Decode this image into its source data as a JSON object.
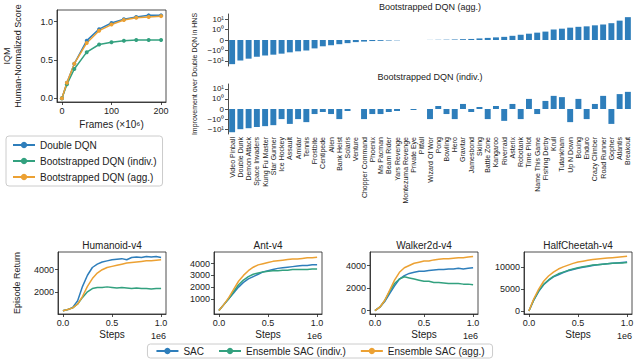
{
  "chart_data": [
    {
      "type": "line",
      "xlabel": "Frames (×10⁶)",
      "ylabel": "IQM\nHuman-Normalized Score",
      "x": [
        0,
        10,
        25,
        50,
        75,
        100,
        125,
        150,
        175,
        200
      ],
      "xlim": [
        -10,
        210
      ],
      "xticks": [
        0,
        100,
        200
      ],
      "ylim": [
        -0.05,
        1.15
      ],
      "yticks": [
        {
          "value": 0,
          "label": "0.0"
        },
        0.5,
        {
          "value": 1,
          "label": "1.0"
        }
      ],
      "grid": false,
      "legend": "lower left",
      "marker": "o",
      "series": [
        {
          "name": "Double DQN",
          "color": "#2e7ebb",
          "values": [
            0,
            0.2,
            0.45,
            0.75,
            0.9,
            0.98,
            1.03,
            1.06,
            1.08,
            1.08
          ]
        },
        {
          "name": "Bootstrapped DQN (indiv.)",
          "color": "#33a17f",
          "values": [
            0,
            0.18,
            0.38,
            0.6,
            0.7,
            0.73,
            0.75,
            0.76,
            0.76,
            0.76
          ]
        },
        {
          "name": "Bootstrapped DQN (agg.)",
          "color": "#eca133",
          "values": [
            0,
            0.2,
            0.45,
            0.72,
            0.88,
            0.96,
            1.02,
            1.05,
            1.06,
            1.07
          ]
        }
      ]
    },
    {
      "type": "bar",
      "title": "Bootstrapped DQN (agg.)",
      "ylabel": "Improvement over Double DQN in HNS",
      "categories": [
        "Video Pinball",
        "Double Dunk",
        "Demon Attack",
        "Space Invaders",
        "Kung Fu Master",
        "Star Gunner",
        "Ice Hockey",
        "Assault",
        "Amidar",
        "Tennis",
        "Frostbite",
        "Centipede",
        "Alien",
        "Bank Heist",
        "Solaris",
        "Venture",
        "Chopper Command",
        "Phoenix",
        "Ms Pacman",
        "Beam Rider",
        "Yars Revenge",
        "Montezuma Revenge",
        "Private Eye",
        "Pitfall",
        "Wizard Of Wor",
        "Pong",
        "Bowling",
        "Hero",
        "Gravitar",
        "Jamesbond",
        "Skiing",
        "Battle Zone",
        "Kangaroo",
        "Riverraid",
        "Asterix",
        "Robotank",
        "Time Pilot",
        "Name This Game",
        "Fishing Derby",
        "Krull",
        "Tutankham",
        "Up N Down",
        "Boxing",
        "Enduro",
        "Crazy Climber",
        "Road Runner",
        "Gopher",
        "Atlantis",
        "Breakout"
      ],
      "values": [
        -20,
        -9,
        -6,
        -4,
        -3,
        -2.5,
        -2,
        -1.5,
        -1.2,
        -1,
        -0.8,
        -0.6,
        -0.5,
        -0.4,
        -0.3,
        -0.2,
        -0.15,
        -0.1,
        -0.08,
        -0.05,
        -0.03,
        0,
        0,
        0,
        0.01,
        0.02,
        0.03,
        0.05,
        0.08,
        0.1,
        0.15,
        0.2,
        0.25,
        0.3,
        0.4,
        0.5,
        0.6,
        0.7,
        0.8,
        1,
        1.2,
        1.5,
        1.8,
        2,
        2.5,
        3,
        4,
        7,
        15
      ],
      "color": "#2e7ebb",
      "log": "y",
      "ylim": [
        -30,
        30
      ],
      "yticks": [
        {
          "value": -10,
          "label": "−10¹"
        },
        {
          "value": -1,
          "label": "−10⁰"
        },
        0,
        {
          "value": 1,
          "label": "10⁰"
        },
        {
          "value": 10,
          "label": "10¹"
        }
      ],
      "grid": false,
      "tick_labels": "y"
    },
    {
      "type": "bar",
      "title": "Bootstrapped DQN (indiv.)",
      "categories": [
        "Video Pinball",
        "Double Dunk",
        "Demon Attack",
        "Space Invaders",
        "Kung Fu Master",
        "Star Gunner",
        "Ice Hockey",
        "Assault",
        "Amidar",
        "Tennis",
        "Frostbite",
        "Centipede",
        "Alien",
        "Bank Heist",
        "Solaris",
        "Venture",
        "Chopper Command",
        "Phoenix",
        "Ms Pacman",
        "Beam Rider",
        "Yars Revenge",
        "Montezuma Revenge",
        "Private Eye",
        "Pitfall",
        "Wizard Of Wor",
        "Pong",
        "Bowling",
        "Hero",
        "Gravitar",
        "Jamesbond",
        "Skiing",
        "Battle Zone",
        "Kangaroo",
        "Riverraid",
        "Asterix",
        "Robotank",
        "Time Pilot",
        "Name This Game",
        "Fishing Derby",
        "Krull",
        "Tutankham",
        "Up N Down",
        "Boxing",
        "Enduro",
        "Crazy Climber",
        "Road Runner",
        "Gopher",
        "Atlantis",
        "Breakout"
      ],
      "values": [
        -20,
        -10,
        -8,
        -6,
        -5,
        -4,
        -1,
        -3,
        -1,
        -2,
        -0.5,
        -0.3,
        -0.5,
        -1,
        -0.2,
        0,
        -1,
        -0.5,
        -0.5,
        -0.3,
        -0.2,
        0,
        -0.1,
        0,
        -1,
        0.3,
        -0.5,
        -1,
        0.5,
        -0.3,
        0.2,
        -1,
        0.3,
        -1.5,
        0.5,
        -1,
        1,
        -0.5,
        0.8,
        2,
        1.5,
        -2,
        1,
        -1,
        0.5,
        2,
        -3,
        3,
        5
      ],
      "color": "#2e7ebb",
      "log": "y",
      "ylim": [
        -30,
        30
      ],
      "yticks": [
        {
          "value": -10,
          "label": "−10¹"
        },
        {
          "value": -1,
          "label": "−10⁰"
        },
        0,
        {
          "value": 1,
          "label": "10⁰"
        },
        {
          "value": 10,
          "label": "10¹"
        }
      ],
      "grid": false,
      "tick_labels": true
    },
    {
      "type": "line",
      "title": "Humanoid-v4",
      "xlabel": "Steps",
      "ylabel": "Episode Return",
      "annotations": [
        "1e6"
      ],
      "x": [
        0,
        0.05,
        0.1,
        0.15,
        0.2,
        0.25,
        0.3,
        0.35,
        0.4,
        0.45,
        0.5,
        0.55,
        0.6,
        0.65,
        0.7,
        0.75,
        0.8,
        0.85,
        0.9,
        0.95,
        1
      ],
      "xlim": [
        -0.05,
        1.05
      ],
      "xticks": [
        {
          "value": 0,
          "label": "0.0"
        },
        0.5,
        {
          "value": 1,
          "label": "1.0"
        }
      ],
      "ylim": [
        0,
        5600
      ],
      "yticks": [
        2000,
        4000
      ],
      "grid": false,
      "legend": "lower center",
      "marker": "none",
      "series": [
        {
          "name": "SAC",
          "color": "#2e7ebb",
          "values": [
            300,
            400,
            600,
            1200,
            2500,
            3500,
            4200,
            4500,
            4700,
            4800,
            4900,
            4950,
            5000,
            4900,
            5100,
            5150,
            5100,
            5200,
            5150,
            5200,
            5100
          ]
        },
        {
          "name": "Ensemble SAC (indiv.)",
          "color": "#33a17f",
          "values": [
            300,
            400,
            550,
            900,
            1500,
            2000,
            2300,
            2400,
            2400,
            2450,
            2400,
            2350,
            2400,
            2350,
            2300,
            2350,
            2300,
            2300,
            2250,
            2300,
            2300
          ]
        },
        {
          "name": "Ensemble SAC (agg.)",
          "color": "#eca133",
          "values": [
            300,
            400,
            550,
            900,
            1600,
            2500,
            3200,
            3700,
            4000,
            4200,
            4300,
            4400,
            4500,
            4600,
            4650,
            4700,
            4750,
            4800,
            4800,
            4850,
            4900
          ]
        }
      ]
    },
    {
      "type": "line",
      "title": "Ant-v4",
      "xlabel": "Steps",
      "annotations": [
        "1e6"
      ],
      "x": [
        0,
        0.05,
        0.1,
        0.15,
        0.2,
        0.25,
        0.3,
        0.35,
        0.4,
        0.45,
        0.5,
        0.55,
        0.6,
        0.65,
        0.7,
        0.75,
        0.8,
        0.85,
        0.9,
        0.95,
        1
      ],
      "xlim": [
        -0.05,
        1.05
      ],
      "xticks": [
        {
          "value": 0,
          "label": "0.0"
        },
        0.5,
        {
          "value": 1,
          "label": "1.0"
        }
      ],
      "ylim": [
        -300,
        5000
      ],
      "yticks": [
        1000,
        2000,
        3000,
        4000
      ],
      "grid": false,
      "marker": "none",
      "series": [
        {
          "name": "SAC",
          "color": "#2e7ebb",
          "values": [
            0,
            500,
            1000,
            1500,
            2000,
            2400,
            2700,
            2900,
            3100,
            3300,
            3400,
            3500,
            3600,
            3650,
            3700,
            3750,
            3800,
            3850,
            3850,
            3900,
            3900
          ]
        },
        {
          "name": "Ensemble SAC (indiv.)",
          "color": "#33a17f",
          "values": [
            0,
            500,
            1000,
            1600,
            2200,
            2600,
            2900,
            3100,
            3200,
            3300,
            3350,
            3400,
            3400,
            3450,
            3450,
            3500,
            3500,
            3500,
            3500,
            3550,
            3550
          ]
        },
        {
          "name": "Ensemble SAC (agg.)",
          "color": "#eca133",
          "values": [
            0,
            500,
            1100,
            1800,
            2500,
            3000,
            3400,
            3700,
            3900,
            4000,
            4100,
            4200,
            4250,
            4300,
            4350,
            4400,
            4400,
            4450,
            4500,
            4500,
            4550
          ]
        }
      ]
    },
    {
      "type": "line",
      "title": "Walker2d-v4",
      "xlabel": "Steps",
      "annotations": [
        "1e6"
      ],
      "x": [
        0,
        0.05,
        0.1,
        0.15,
        0.2,
        0.25,
        0.3,
        0.35,
        0.4,
        0.45,
        0.5,
        0.55,
        0.6,
        0.65,
        0.7,
        0.75,
        0.8,
        0.85,
        0.9,
        0.95,
        1
      ],
      "xlim": [
        -0.05,
        1.05
      ],
      "xticks": [
        {
          "value": 0,
          "label": "0.0"
        },
        0.5,
        {
          "value": 1,
          "label": "1.0"
        }
      ],
      "ylim": [
        -300,
        5200
      ],
      "yticks": [
        0,
        2000,
        4000
      ],
      "grid": false,
      "marker": "none",
      "series": [
        {
          "name": "SAC",
          "color": "#2e7ebb",
          "values": [
            0,
            300,
            800,
            1500,
            2200,
            2800,
            3100,
            3300,
            3400,
            3500,
            3500,
            3550,
            3600,
            3650,
            3650,
            3700,
            3700,
            3750,
            3700,
            3750,
            3800
          ]
        },
        {
          "name": "Ensemble SAC (indiv.)",
          "color": "#33a17f",
          "values": [
            0,
            300,
            900,
            1700,
            2400,
            2800,
            3000,
            2900,
            2800,
            2700,
            2600,
            2600,
            2500,
            2500,
            2450,
            2400,
            2400,
            2400,
            2350,
            2350,
            2300
          ]
        },
        {
          "name": "Ensemble SAC (agg.)",
          "color": "#eca133",
          "values": [
            0,
            300,
            900,
            1800,
            2700,
            3400,
            3800,
            4000,
            4200,
            4300,
            4400,
            4400,
            4500,
            4550,
            4600,
            4600,
            4650,
            4700,
            4700,
            4750,
            4800
          ]
        }
      ]
    },
    {
      "type": "line",
      "title": "HalfCheetah-v4",
      "xlabel": "Steps",
      "annotations": [
        "1e6"
      ],
      "x": [
        0,
        0.05,
        0.1,
        0.15,
        0.2,
        0.25,
        0.3,
        0.35,
        0.4,
        0.45,
        0.5,
        0.55,
        0.6,
        0.65,
        0.7,
        0.75,
        0.8,
        0.85,
        0.9,
        0.95,
        1
      ],
      "xlim": [
        -0.05,
        1.05
      ],
      "xticks": [
        {
          "value": 0,
          "label": "0.0"
        },
        0.5,
        {
          "value": 1,
          "label": "1.0"
        }
      ],
      "ylim": [
        -700,
        13500
      ],
      "yticks": [
        0,
        5000,
        10000
      ],
      "grid": false,
      "marker": "none",
      "series": [
        {
          "name": "SAC",
          "color": "#2e7ebb",
          "values": [
            0,
            2500,
            4500,
            6000,
            7000,
            7800,
            8300,
            8800,
            9200,
            9500,
            9800,
            10000,
            10200,
            10400,
            10600,
            10700,
            10800,
            10900,
            11000,
            11100,
            11200
          ]
        },
        {
          "name": "Ensemble SAC (indiv.)",
          "color": "#33a17f",
          "values": [
            0,
            2600,
            4600,
            6100,
            7100,
            7900,
            8500,
            8900,
            9300,
            9600,
            9900,
            10100,
            10300,
            10500,
            10600,
            10700,
            10800,
            10900,
            11000,
            11000,
            11100
          ]
        },
        {
          "name": "Ensemble SAC (agg.)",
          "color": "#eca133",
          "values": [
            0,
            2800,
            5000,
            6800,
            8000,
            8900,
            9600,
            10100,
            10500,
            10900,
            11200,
            11400,
            11600,
            11800,
            11900,
            12000,
            12100,
            12200,
            12300,
            12400,
            12500
          ]
        }
      ]
    }
  ]
}
